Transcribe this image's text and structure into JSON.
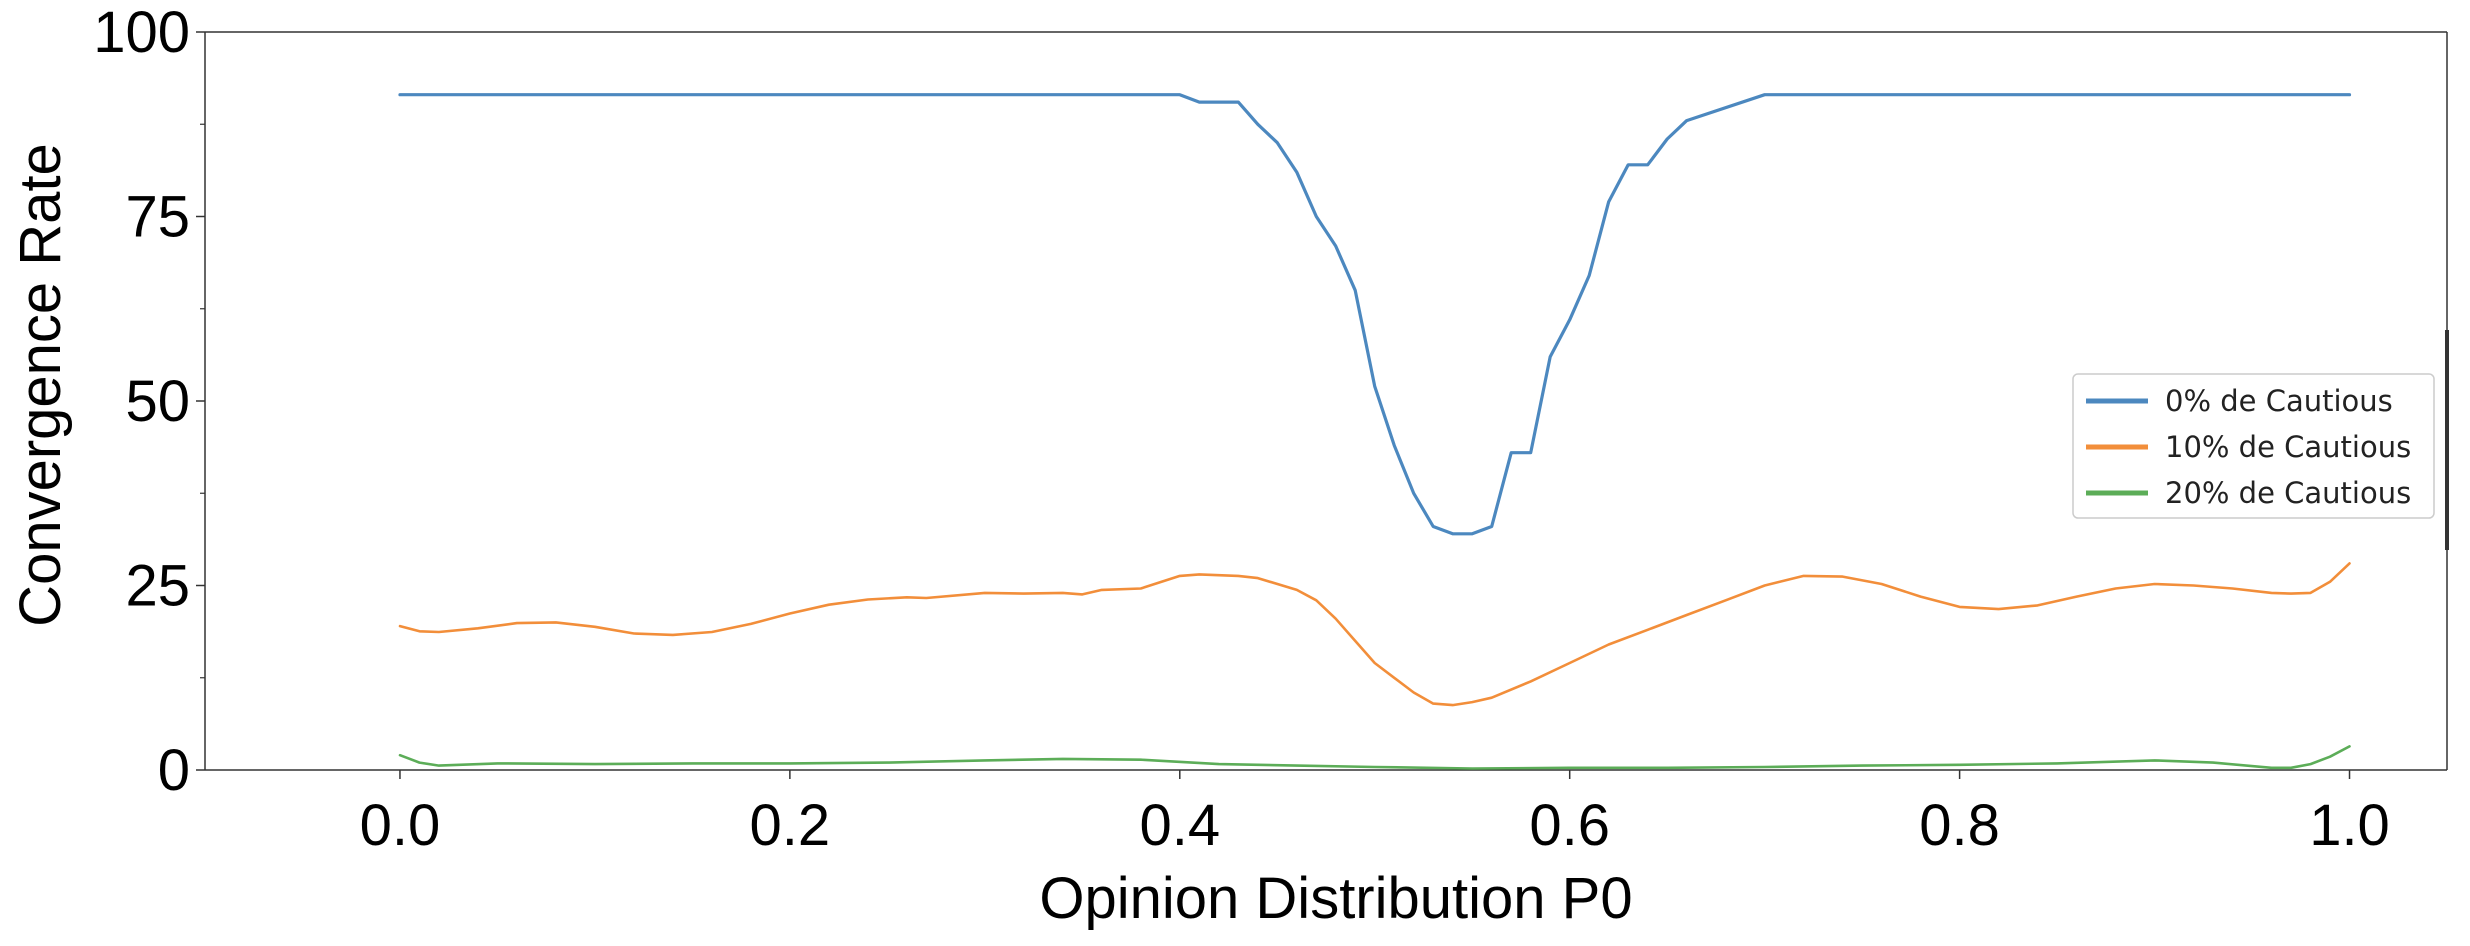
{
  "chart_data": {
    "type": "line",
    "title": "",
    "xlabel": "Opinion Distribution P0",
    "ylabel": "Convergence Rate",
    "xlim": [
      -0.1,
      1.05
    ],
    "ylim": [
      0,
      100
    ],
    "x_ticks": [
      {
        "value": 0.0,
        "label": "0.0"
      },
      {
        "value": 0.2,
        "label": "0.2"
      },
      {
        "value": 0.4,
        "label": "0.4"
      },
      {
        "value": 0.6,
        "label": "0.6"
      },
      {
        "value": 0.8,
        "label": "0.8"
      },
      {
        "value": 1.0,
        "label": "1.0"
      }
    ],
    "y_ticks": [
      {
        "value": 0,
        "label": "0"
      },
      {
        "value": 25,
        "label": "25"
      },
      {
        "value": 50,
        "label": "50"
      },
      {
        "value": 75,
        "label": "75"
      },
      {
        "value": 100,
        "label": "100"
      }
    ],
    "y_minor_ticks": [
      12.5,
      37.5,
      62.5,
      87.5
    ],
    "grid": false,
    "legend_position": "right",
    "series": [
      {
        "name": "0% de Cautious",
        "color": "#4c88bf",
        "points": [
          [
            0.0,
            91.5
          ],
          [
            0.1,
            91.5
          ],
          [
            0.2,
            91.5
          ],
          [
            0.3,
            91.5
          ],
          [
            0.4,
            91.5
          ],
          [
            0.41,
            90.5
          ],
          [
            0.43,
            90.5
          ],
          [
            0.44,
            87.5
          ],
          [
            0.45,
            85
          ],
          [
            0.46,
            81
          ],
          [
            0.47,
            75
          ],
          [
            0.48,
            71
          ],
          [
            0.49,
            65
          ],
          [
            0.5,
            52
          ],
          [
            0.51,
            44
          ],
          [
            0.52,
            37.5
          ],
          [
            0.53,
            33
          ],
          [
            0.54,
            32
          ],
          [
            0.55,
            32
          ],
          [
            0.56,
            33
          ],
          [
            0.57,
            43
          ],
          [
            0.58,
            43
          ],
          [
            0.59,
            56
          ],
          [
            0.6,
            61
          ],
          [
            0.61,
            67
          ],
          [
            0.62,
            77
          ],
          [
            0.63,
            82
          ],
          [
            0.64,
            82
          ],
          [
            0.65,
            85.5
          ],
          [
            0.66,
            88
          ],
          [
            0.7,
            91.5
          ],
          [
            0.8,
            91.5
          ],
          [
            0.9,
            91.5
          ],
          [
            1.0,
            91.5
          ]
        ]
      },
      {
        "name": "10% de Cautious",
        "color": "#f28e3a",
        "points": [
          [
            0.0,
            19.5
          ],
          [
            0.01,
            18.8
          ],
          [
            0.02,
            18.7
          ],
          [
            0.04,
            19.2
          ],
          [
            0.06,
            19.9
          ],
          [
            0.08,
            20
          ],
          [
            0.1,
            19.4
          ],
          [
            0.12,
            18.5
          ],
          [
            0.14,
            18.3
          ],
          [
            0.16,
            18.7
          ],
          [
            0.18,
            19.8
          ],
          [
            0.2,
            21.2
          ],
          [
            0.22,
            22.4
          ],
          [
            0.24,
            23.1
          ],
          [
            0.26,
            23.4
          ],
          [
            0.27,
            23.3
          ],
          [
            0.3,
            24
          ],
          [
            0.32,
            23.9
          ],
          [
            0.34,
            24
          ],
          [
            0.35,
            23.8
          ],
          [
            0.36,
            24.4
          ],
          [
            0.38,
            24.6
          ],
          [
            0.4,
            26.3
          ],
          [
            0.41,
            26.5
          ],
          [
            0.42,
            26.4
          ],
          [
            0.43,
            26.3
          ],
          [
            0.44,
            26
          ],
          [
            0.46,
            24.4
          ],
          [
            0.47,
            23
          ],
          [
            0.48,
            20.5
          ],
          [
            0.49,
            17.5
          ],
          [
            0.5,
            14.5
          ],
          [
            0.51,
            12.5
          ],
          [
            0.52,
            10.5
          ],
          [
            0.53,
            9
          ],
          [
            0.54,
            8.8
          ],
          [
            0.55,
            9.2
          ],
          [
            0.56,
            9.8
          ],
          [
            0.58,
            12
          ],
          [
            0.6,
            14.5
          ],
          [
            0.62,
            17
          ],
          [
            0.64,
            19
          ],
          [
            0.66,
            21
          ],
          [
            0.68,
            23
          ],
          [
            0.7,
            25
          ],
          [
            0.72,
            26.3
          ],
          [
            0.74,
            26.2
          ],
          [
            0.76,
            25.2
          ],
          [
            0.78,
            23.5
          ],
          [
            0.8,
            22.1
          ],
          [
            0.82,
            21.8
          ],
          [
            0.84,
            22.3
          ],
          [
            0.86,
            23.5
          ],
          [
            0.88,
            24.6
          ],
          [
            0.9,
            25.2
          ],
          [
            0.92,
            25
          ],
          [
            0.94,
            24.6
          ],
          [
            0.96,
            24
          ],
          [
            0.97,
            23.9
          ],
          [
            0.98,
            24
          ],
          [
            0.99,
            25.5
          ],
          [
            1.0,
            28
          ]
        ]
      },
      {
        "name": "20% de Cautious",
        "color": "#5cad58",
        "points": [
          [
            0.0,
            2
          ],
          [
            0.01,
            1
          ],
          [
            0.02,
            0.6
          ],
          [
            0.05,
            0.9
          ],
          [
            0.1,
            0.8
          ],
          [
            0.15,
            0.9
          ],
          [
            0.2,
            0.9
          ],
          [
            0.25,
            1
          ],
          [
            0.3,
            1.3
          ],
          [
            0.34,
            1.5
          ],
          [
            0.38,
            1.4
          ],
          [
            0.42,
            0.8
          ],
          [
            0.46,
            0.6
          ],
          [
            0.5,
            0.4
          ],
          [
            0.55,
            0.2
          ],
          [
            0.6,
            0.3
          ],
          [
            0.65,
            0.3
          ],
          [
            0.7,
            0.4
          ],
          [
            0.75,
            0.6
          ],
          [
            0.8,
            0.7
          ],
          [
            0.85,
            0.9
          ],
          [
            0.9,
            1.3
          ],
          [
            0.93,
            1
          ],
          [
            0.96,
            0.3
          ],
          [
            0.97,
            0.3
          ],
          [
            0.98,
            0.8
          ],
          [
            0.99,
            1.8
          ],
          [
            1.0,
            3.2
          ]
        ]
      }
    ]
  }
}
